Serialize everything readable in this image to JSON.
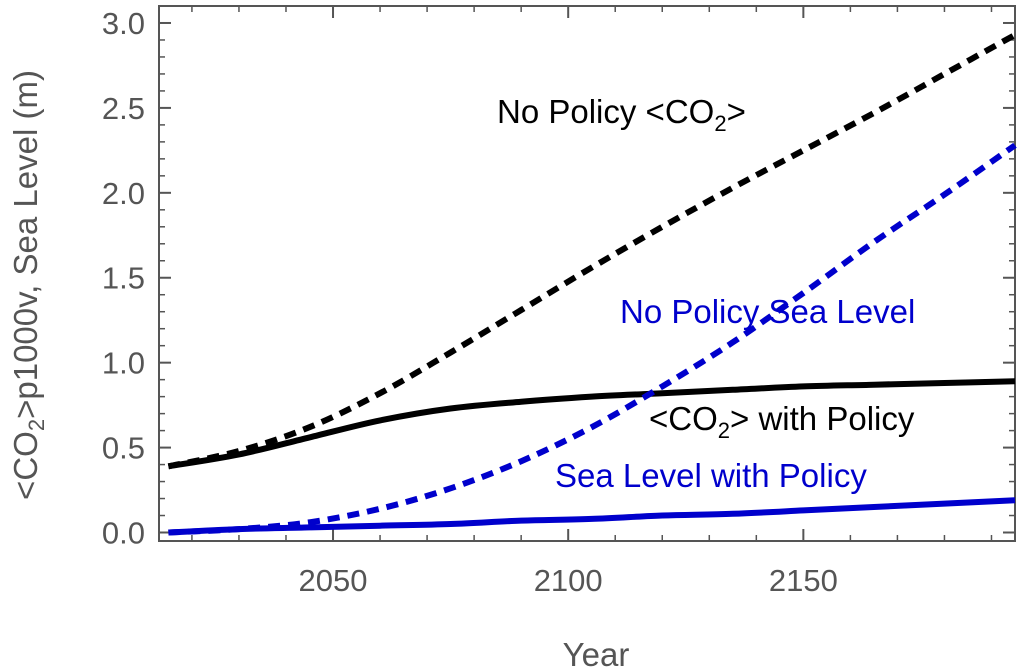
{
  "chart_data": {
    "type": "line",
    "title": "",
    "xlabel": "Year",
    "ylabel_parts": [
      "<CO",
      "2",
      ">p1000v, Sea Level (m)"
    ],
    "xlim": [
      2013,
      2195
    ],
    "ylim": [
      -0.05,
      3.1
    ],
    "x_ticks": [
      2050,
      2100,
      2150
    ],
    "x_tick_labels": [
      "2050",
      "2100",
      "2150"
    ],
    "y_ticks": [
      0.0,
      0.5,
      1.0,
      1.5,
      2.0,
      2.5,
      3.0
    ],
    "y_tick_labels": [
      "0.0",
      "0.5",
      "1.0",
      "1.5",
      "2.0",
      "2.5",
      "3.0"
    ],
    "x": [
      2015,
      2030,
      2045,
      2060,
      2075,
      2090,
      2105,
      2120,
      2135,
      2150,
      2165,
      2180,
      2195
    ],
    "series": [
      {
        "name": "No Policy <CO2>",
        "color": "#000000",
        "style": "dashed",
        "values": [
          0.39,
          0.48,
          0.62,
          0.82,
          1.06,
          1.31,
          1.56,
          1.8,
          2.03,
          2.25,
          2.47,
          2.7,
          2.93
        ]
      },
      {
        "name": "No Policy Sea Level",
        "color": "#0000cc",
        "style": "dashed",
        "values": [
          0.0,
          0.02,
          0.06,
          0.14,
          0.26,
          0.42,
          0.62,
          0.86,
          1.12,
          1.41,
          1.71,
          1.99,
          2.28
        ]
      },
      {
        "name": "<CO2> with Policy",
        "color": "#000000",
        "style": "solid",
        "values": [
          0.39,
          0.46,
          0.56,
          0.66,
          0.73,
          0.77,
          0.8,
          0.82,
          0.84,
          0.86,
          0.87,
          0.88,
          0.89
        ]
      },
      {
        "name": "Sea Level with Policy",
        "color": "#0000cc",
        "style": "solid",
        "values": [
          0.0,
          0.02,
          0.03,
          0.04,
          0.05,
          0.07,
          0.08,
          0.1,
          0.11,
          0.13,
          0.15,
          0.17,
          0.19
        ]
      }
    ],
    "annotations": [
      {
        "id": "no-policy-co2",
        "parts": [
          "No Policy <CO",
          "2",
          ">"
        ],
        "color": "#000000"
      },
      {
        "id": "no-policy-sea",
        "parts": [
          "No Policy Sea Level"
        ],
        "color": "#0000cc"
      },
      {
        "id": "co2-with-policy",
        "parts": [
          "<CO",
          "2",
          "> with Policy"
        ],
        "color": "#000000"
      },
      {
        "id": "sea-with-policy",
        "parts": [
          "Sea Level with Policy"
        ],
        "color": "#0000cc"
      }
    ]
  }
}
